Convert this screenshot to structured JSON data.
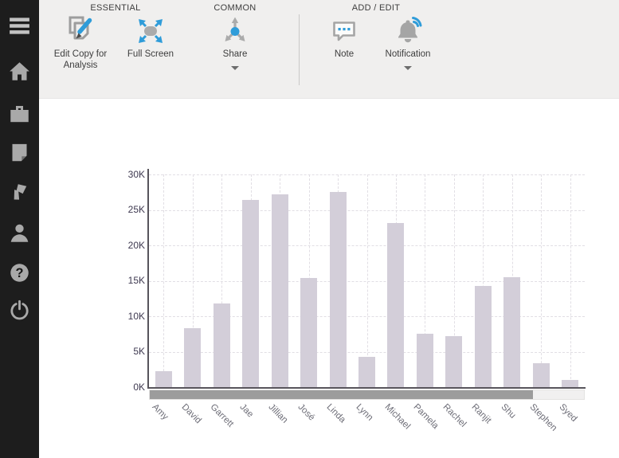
{
  "sidebar": {
    "items": [
      {
        "icon": "menu-icon"
      },
      {
        "icon": "home-icon"
      },
      {
        "icon": "briefcase-icon"
      },
      {
        "icon": "note-page-icon"
      },
      {
        "icon": "pages-icon"
      },
      {
        "icon": "person-icon"
      },
      {
        "icon": "help-icon"
      },
      {
        "icon": "power-icon"
      }
    ]
  },
  "ribbon": {
    "groups": [
      {
        "label": "ESSENTIAL",
        "buttons": [
          {
            "label": "Edit Copy for Analysis",
            "icon": "edit-copy-icon",
            "dropdown": false
          },
          {
            "label": "Full Screen",
            "icon": "full-screen-icon",
            "dropdown": false
          }
        ]
      },
      {
        "label": "COMMON",
        "buttons": [
          {
            "label": "Share",
            "icon": "share-icon",
            "dropdown": true
          }
        ]
      },
      {
        "label": "ADD / EDIT",
        "buttons": [
          {
            "label": "Note",
            "icon": "note-icon",
            "dropdown": false
          },
          {
            "label": "Notification",
            "icon": "notification-icon",
            "dropdown": true
          }
        ]
      }
    ]
  },
  "colors": {
    "accent_blue": "#2f9cd9",
    "icon_gray": "#a9a9a9",
    "sidebar_bg": "#1d1d1d",
    "ribbon_bg": "#f0efee",
    "axis_line": "#57545b",
    "bar_fill": "#d3ced9",
    "scrollbar_thumb": "#9c9c9c",
    "scrollbar_track": "#f1f0f0"
  },
  "chart_data": {
    "type": "bar",
    "title": "",
    "xlabel": "",
    "ylabel": "",
    "categories": [
      "Amy",
      "David",
      "Garrett",
      "Jae",
      "Jillian",
      "José",
      "Linda",
      "Lynn",
      "Michael",
      "Pamela",
      "Rachel",
      "Ranjit",
      "Shu",
      "Stephen",
      "Syed"
    ],
    "values": [
      2200,
      8300,
      11800,
      26400,
      27200,
      15400,
      27500,
      4300,
      23200,
      7500,
      7200,
      14300,
      15500,
      3400,
      1000
    ],
    "ylim": [
      0,
      30000
    ],
    "y_ticks": [
      "30K",
      "25K",
      "20K",
      "15K",
      "10K",
      "5K",
      "0K"
    ],
    "grid": "dashed",
    "legend": "none",
    "bar_color": "#d3ced9",
    "x_label_rotation": 45,
    "scrollbar": {
      "thumb_fraction": 0.883
    }
  }
}
